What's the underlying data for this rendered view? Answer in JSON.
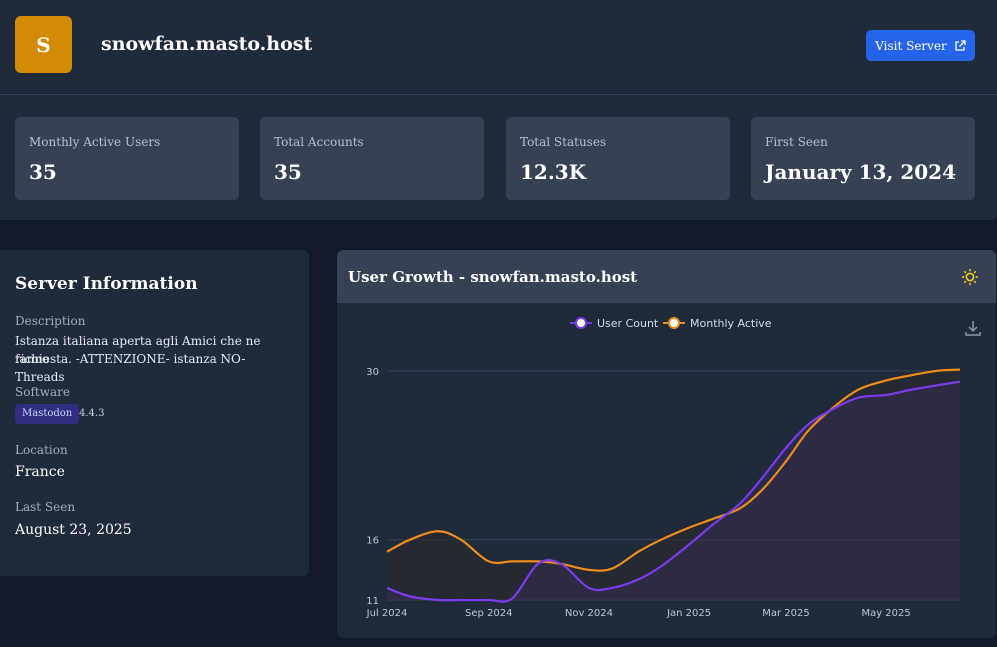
{
  "server": {
    "logo_letter": "S",
    "name": "snowfan.masto.host",
    "visit_label": "Visit Server"
  },
  "stats": [
    {
      "label": "Monthly Active Users",
      "value": "35"
    },
    {
      "label": "Total Accounts",
      "value": "35"
    },
    {
      "label": "Total Statuses",
      "value": "12.3K"
    },
    {
      "label": "First Seen",
      "value": "January 13, 2024"
    }
  ],
  "info": {
    "title": "Server Information",
    "description_label": "Description",
    "description_line1": "Istanza italiana aperta agli Amici che ne fanno",
    "description_line2": "richiesta. -ATTENZIONE- istanza NO-Threads",
    "software_label": "Software",
    "software_name": "Mastodon",
    "software_version": "4.4.3",
    "location_label": "Location",
    "location": "France",
    "last_seen_label": "Last Seen",
    "last_seen": "August 23, 2025"
  },
  "chart_panel": {
    "title": "User Growth - snowfan.masto.host",
    "theme_icon": "sun-icon",
    "download_icon": "download-icon"
  },
  "colors": {
    "accent": "#2563eb",
    "logo": "#d38a04",
    "user_count": "#7c3aed",
    "monthly_active": "#f08c1a"
  },
  "chart_data": {
    "type": "line",
    "x": [
      "2024-07-01",
      "2024-07-15",
      "2024-08-01",
      "2024-08-15",
      "2024-09-01",
      "2024-09-15",
      "2024-10-01",
      "2024-10-15",
      "2024-11-01",
      "2024-11-15",
      "2024-12-01",
      "2024-12-15",
      "2025-01-01",
      "2025-01-15",
      "2025-02-01",
      "2025-02-15",
      "2025-03-01",
      "2025-03-15",
      "2025-04-01",
      "2025-04-15",
      "2025-05-01",
      "2025-05-15",
      "2025-06-01",
      "2025-06-15"
    ],
    "x_ticks": [
      "Jul 2024",
      "Sep 2024",
      "Nov 2024",
      "Jan 2025",
      "Mar 2025",
      "May 2025"
    ],
    "y_ticks": [
      "11",
      "16",
      "30"
    ],
    "series": [
      {
        "name": "User Count",
        "values": [
          12,
          11.3,
          11,
          11,
          11,
          11.1,
          14,
          14,
          12,
          12,
          12.7,
          13.8,
          15.6,
          17.2,
          19,
          21.2,
          23.6,
          25.6,
          27,
          27.8,
          28,
          28.4,
          28.8,
          29.1
        ]
      },
      {
        "name": "Monthly Active",
        "values": [
          15,
          16,
          16.7,
          16,
          14.2,
          14.2,
          14.2,
          14,
          13.5,
          13.6,
          15,
          16,
          17,
          17.7,
          18.6,
          20.2,
          22.5,
          25.1,
          27.2,
          28.5,
          29.2,
          29.6,
          30,
          30.1
        ]
      }
    ],
    "ylim": [
      11,
      30.4
    ],
    "legend_position": "top-center",
    "grid": true
  }
}
